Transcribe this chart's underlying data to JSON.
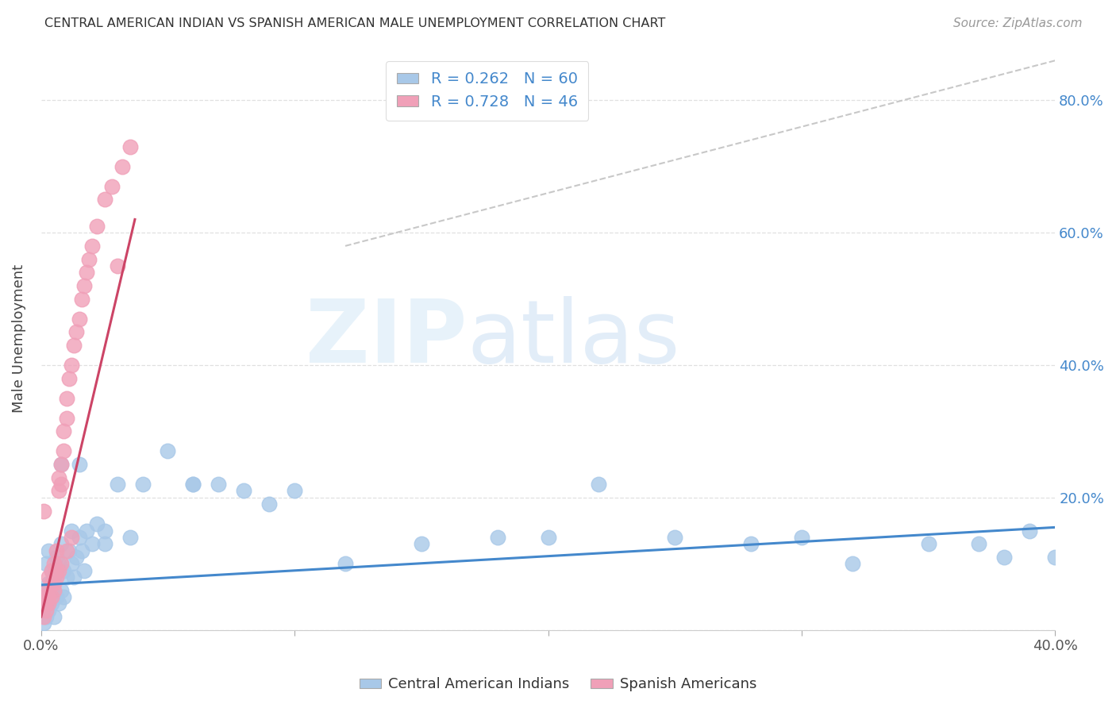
{
  "title": "CENTRAL AMERICAN INDIAN VS SPANISH AMERICAN MALE UNEMPLOYMENT CORRELATION CHART",
  "source": "Source: ZipAtlas.com",
  "ylabel": "Male Unemployment",
  "color_blue": "#a8c8e8",
  "color_pink": "#f0a0b8",
  "trendline_blue": "#4488cc",
  "trendline_pink": "#cc4466",
  "diagonal_color": "#c8c8c8",
  "text_color_blue": "#4488cc",
  "background": "#ffffff",
  "grid_color": "#e0e0e0",
  "blue_points_x": [
    0.001,
    0.001,
    0.002,
    0.002,
    0.002,
    0.003,
    0.003,
    0.003,
    0.004,
    0.004,
    0.005,
    0.005,
    0.006,
    0.006,
    0.007,
    0.007,
    0.008,
    0.008,
    0.009,
    0.009,
    0.01,
    0.011,
    0.012,
    0.013,
    0.014,
    0.015,
    0.016,
    0.017,
    0.018,
    0.02,
    0.022,
    0.025,
    0.03,
    0.035,
    0.04,
    0.05,
    0.06,
    0.07,
    0.08,
    0.09,
    0.1,
    0.12,
    0.15,
    0.18,
    0.2,
    0.22,
    0.25,
    0.28,
    0.3,
    0.32,
    0.35,
    0.37,
    0.38,
    0.39,
    0.4,
    0.015,
    0.008,
    0.012,
    0.025,
    0.06
  ],
  "blue_points_y": [
    0.01,
    0.05,
    0.02,
    0.06,
    0.1,
    0.03,
    0.07,
    0.12,
    0.04,
    0.09,
    0.02,
    0.08,
    0.05,
    0.11,
    0.04,
    0.1,
    0.06,
    0.13,
    0.05,
    0.09,
    0.08,
    0.12,
    0.1,
    0.08,
    0.11,
    0.14,
    0.12,
    0.09,
    0.15,
    0.13,
    0.16,
    0.13,
    0.22,
    0.14,
    0.22,
    0.27,
    0.22,
    0.22,
    0.21,
    0.19,
    0.21,
    0.1,
    0.13,
    0.14,
    0.14,
    0.22,
    0.14,
    0.13,
    0.14,
    0.1,
    0.13,
    0.13,
    0.11,
    0.15,
    0.11,
    0.25,
    0.25,
    0.15,
    0.15,
    0.22
  ],
  "pink_points_x": [
    0.001,
    0.001,
    0.001,
    0.002,
    0.002,
    0.003,
    0.003,
    0.004,
    0.004,
    0.005,
    0.005,
    0.006,
    0.006,
    0.007,
    0.007,
    0.008,
    0.008,
    0.009,
    0.009,
    0.01,
    0.01,
    0.011,
    0.012,
    0.013,
    0.014,
    0.015,
    0.016,
    0.017,
    0.018,
    0.019,
    0.02,
    0.022,
    0.025,
    0.028,
    0.03,
    0.032,
    0.035,
    0.002,
    0.003,
    0.004,
    0.005,
    0.006,
    0.007,
    0.008,
    0.01,
    0.012
  ],
  "pink_points_y": [
    0.02,
    0.05,
    0.18,
    0.03,
    0.06,
    0.04,
    0.08,
    0.05,
    0.09,
    0.06,
    0.1,
    0.08,
    0.12,
    0.21,
    0.23,
    0.22,
    0.25,
    0.27,
    0.3,
    0.32,
    0.35,
    0.38,
    0.4,
    0.43,
    0.45,
    0.47,
    0.5,
    0.52,
    0.54,
    0.56,
    0.58,
    0.61,
    0.65,
    0.67,
    0.55,
    0.7,
    0.73,
    0.04,
    0.05,
    0.07,
    0.07,
    0.09,
    0.09,
    0.1,
    0.12,
    0.14
  ],
  "xlim": [
    0.0,
    0.4
  ],
  "ylim": [
    0.0,
    0.88
  ],
  "xtick_positions": [
    0.0,
    0.1,
    0.2,
    0.3,
    0.4
  ],
  "ytick_positions": [
    0.0,
    0.2,
    0.4,
    0.6,
    0.8
  ],
  "ytick_labels": [
    "",
    "20.0%",
    "40.0%",
    "60.0%",
    "80.0%"
  ],
  "xtick_labels_show": [
    "0.0%",
    "40.0%"
  ],
  "blue_trend_x": [
    0.0,
    0.4
  ],
  "blue_trend_y": [
    0.068,
    0.155
  ],
  "pink_trend_x": [
    0.0,
    0.037
  ],
  "pink_trend_y": [
    0.02,
    0.62
  ]
}
